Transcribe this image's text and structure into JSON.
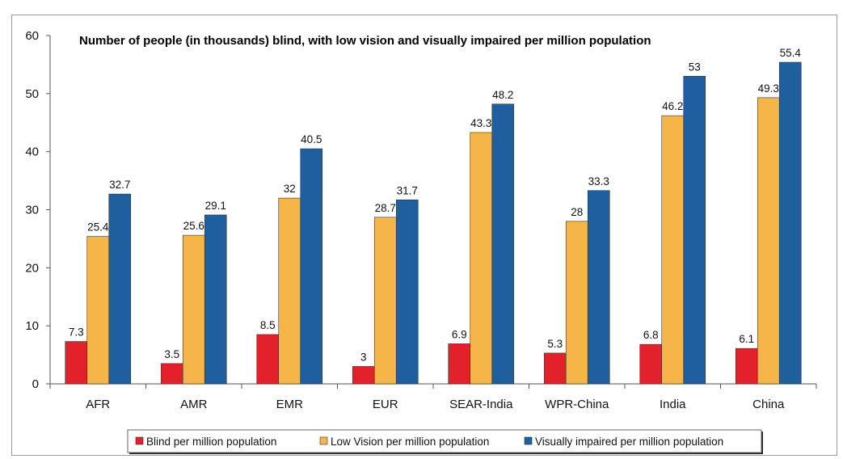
{
  "chart_data": {
    "type": "bar",
    "title": "Number of people (in thousands)  blind, with low vision and visually impaired per million population",
    "categories": [
      "AFR",
      "AMR",
      "EMR",
      "EUR",
      "SEAR-India",
      "WPR-China",
      "India",
      "China"
    ],
    "series": [
      {
        "name": "Blind per million population",
        "color": "#e2212b",
        "values": [
          7.3,
          3.5,
          8.5,
          3,
          6.9,
          5.3,
          6.8,
          6.1
        ]
      },
      {
        "name": "Low Vision per million population",
        "color": "#f5b548",
        "values": [
          25.4,
          25.6,
          32,
          28.7,
          43.3,
          28,
          46.2,
          49.3
        ]
      },
      {
        "name": "Visually impaired per million population",
        "color": "#1f5f9e",
        "values": [
          32.7,
          29.1,
          40.5,
          31.7,
          48.2,
          33.3,
          53,
          55.4
        ]
      }
    ],
    "value_labels": [
      [
        "7.3",
        "3.5",
        "8.5",
        "3",
        "6.9",
        "5.3",
        "6.8",
        "6.1"
      ],
      [
        "25.4",
        "25.6",
        "32",
        "28.7",
        "43.3",
        "28",
        "46.2",
        "49.3"
      ],
      [
        "32.7",
        "29.1",
        "40.5",
        "31.7",
        "48.2",
        "33.3",
        "53",
        "55.4"
      ]
    ],
    "ylim": [
      0,
      60
    ],
    "yticks": [
      "0",
      "10",
      "20",
      "30",
      "40",
      "50",
      "60"
    ],
    "xlabel": "",
    "ylabel": "",
    "grid": false,
    "legend": "bottom"
  }
}
